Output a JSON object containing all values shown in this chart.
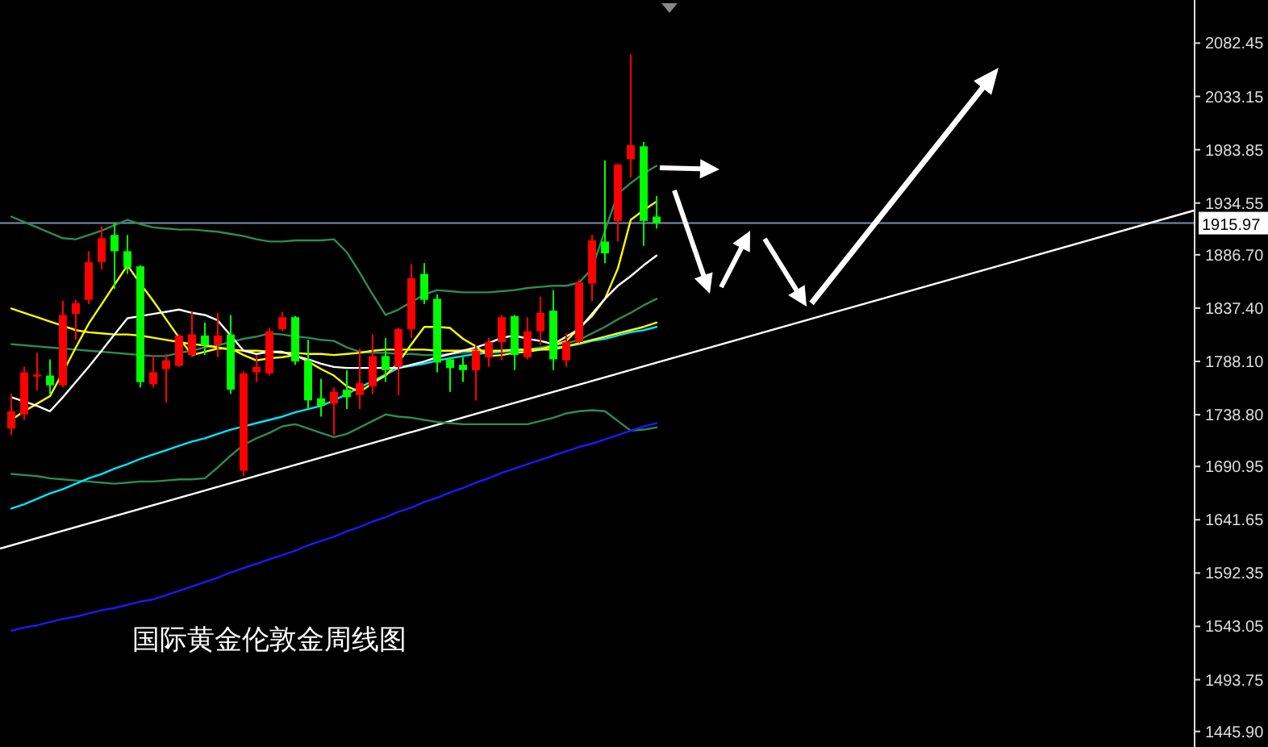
{
  "chart_data": {
    "type": "candlestick",
    "title": "国际黄金伦敦金周线图",
    "categories": [
      null,
      null,
      null,
      null,
      null,
      null,
      null,
      null,
      null,
      null,
      null,
      null,
      null,
      null,
      null,
      null,
      null,
      null,
      null,
      null,
      null,
      null,
      null,
      null,
      null,
      null,
      null,
      null,
      null,
      null,
      null,
      null,
      null,
      null,
      null,
      null,
      null,
      null,
      null,
      null,
      null,
      null,
      null,
      null,
      null,
      null,
      null,
      null,
      null,
      null,
      null
    ],
    "ohlc": [
      [
        1726,
        1758,
        1720,
        1742
      ],
      [
        1739,
        1783,
        1734,
        1778
      ],
      [
        1774,
        1796,
        1761,
        1776
      ],
      [
        1775,
        1790,
        1758,
        1766
      ],
      [
        1766,
        1844,
        1764,
        1831
      ],
      [
        1832,
        1845,
        1808,
        1842
      ],
      [
        1845,
        1890,
        1841,
        1880
      ],
      [
        1880,
        1913,
        1873,
        1902
      ],
      [
        1905,
        1916,
        1855,
        1890
      ],
      [
        1890,
        1905,
        1869,
        1875
      ],
      [
        1876,
        1877,
        1764,
        1769
      ],
      [
        1767,
        1794,
        1764,
        1778
      ],
      [
        1781,
        1795,
        1750,
        1789
      ],
      [
        1784,
        1813,
        1783,
        1812
      ],
      [
        1794,
        1834,
        1792,
        1813
      ],
      [
        1812,
        1824,
        1794,
        1803
      ],
      [
        1804,
        1833,
        1792,
        1812
      ],
      [
        1813,
        1831,
        1758,
        1762
      ],
      [
        1687,
        1779,
        1682,
        1777
      ],
      [
        1778,
        1794,
        1769,
        1783
      ],
      [
        1777,
        1819,
        1775,
        1816
      ],
      [
        1818,
        1834,
        1816,
        1829
      ],
      [
        1829,
        1830,
        1785,
        1788
      ],
      [
        1789,
        1808,
        1744,
        1752
      ],
      [
        1754,
        1772,
        1737,
        1747
      ],
      [
        1749,
        1764,
        1720,
        1760
      ],
      [
        1762,
        1780,
        1744,
        1755
      ],
      [
        1757,
        1800,
        1744,
        1768
      ],
      [
        1765,
        1813,
        1758,
        1793
      ],
      [
        1793,
        1810,
        1769,
        1780
      ],
      [
        1783,
        1819,
        1757,
        1818
      ],
      [
        1818,
        1878,
        1810,
        1865
      ],
      [
        1869,
        1879,
        1841,
        1845
      ],
      [
        1846,
        1850,
        1778,
        1787
      ],
      [
        1790,
        1792,
        1760,
        1782
      ],
      [
        1785,
        1792,
        1769,
        1780
      ],
      [
        1780,
        1803,
        1752,
        1798
      ],
      [
        1792,
        1810,
        1783,
        1806
      ],
      [
        1806,
        1831,
        1789,
        1829
      ],
      [
        1830,
        1831,
        1780,
        1794
      ],
      [
        1792,
        1829,
        1790,
        1816
      ],
      [
        1816,
        1848,
        1803,
        1833
      ],
      [
        1835,
        1854,
        1780,
        1790
      ],
      [
        1789,
        1814,
        1783,
        1806
      ],
      [
        1806,
        1864,
        1805,
        1861
      ],
      [
        1860,
        1905,
        1844,
        1900
      ],
      [
        1899,
        1974,
        1879,
        1888
      ],
      [
        1918,
        1971,
        1899,
        1970
      ],
      [
        1975,
        2072,
        1958,
        1988
      ],
      [
        1987,
        1991,
        1895,
        1918
      ],
      [
        1922,
        1941,
        1911,
        1916
      ]
    ],
    "colors": [
      "#ff0000",
      "#ff0000",
      "#ff0000",
      "#00ff00",
      "#ff0000",
      "#ff0000",
      "#ff0000",
      "#ff0000",
      "#00ff00",
      "#00ff00",
      "#00ff00",
      "#ff0000",
      "#ff0000",
      "#ff0000",
      "#ff0000",
      "#00ff00",
      "#ff0000",
      "#00ff00",
      "#ff0000",
      "#ff0000",
      "#ff0000",
      "#ff0000",
      "#00ff00",
      "#00ff00",
      "#00ff00",
      "#ff0000",
      "#00ff00",
      "#ff0000",
      "#ff0000",
      "#00ff00",
      "#ff0000",
      "#ff0000",
      "#00ff00",
      "#00ff00",
      "#00ff00",
      "#00ff00",
      "#ff0000",
      "#ff0000",
      "#ff0000",
      "#00ff00",
      "#ff0000",
      "#ff0000",
      "#00ff00",
      "#ff0000",
      "#ff0000",
      "#ff0000",
      "#00ff00",
      "#ff0000",
      "#ff0000",
      "#00ff00",
      "#00ff00"
    ],
    "series": [
      {
        "type": "line",
        "color": "#2e8b57",
        "values": [
          1922,
          1917,
          1912,
          1907,
          1902,
          1901,
          1905,
          1909,
          1914,
          1919,
          1915,
          1912,
          1911,
          1910,
          1910,
          1909,
          1908,
          1906,
          1904,
          1901,
          1899,
          1899,
          1900,
          1900,
          1900,
          1901,
          1889,
          1870,
          1850,
          1831,
          1836,
          1843,
          1850,
          1854,
          1853,
          1852,
          1852,
          1852,
          1853,
          1854,
          1856,
          1857,
          1858,
          1858,
          1861,
          1874,
          1909,
          1943,
          1953,
          1962,
          1969
        ]
      },
      {
        "type": "line",
        "color": "#2e8b57",
        "values": [
          1804,
          1803,
          1802,
          1801,
          1800,
          1799,
          1798,
          1797,
          1796,
          1795,
          1794,
          1793,
          1793,
          1796,
          1798,
          1801,
          1803,
          1806,
          1809,
          1811,
          1814,
          1813,
          1811,
          1810,
          1808,
          1807,
          1801,
          1797,
          1796,
          1796,
          1795,
          1795,
          1794,
          1794,
          1795,
          1796,
          1797,
          1797,
          1798,
          1799,
          1799,
          1801,
          1803,
          1805,
          1808,
          1814,
          1820,
          1827,
          1833,
          1840,
          1846
        ]
      },
      {
        "type": "line",
        "color": "#2e8b57",
        "values": [
          1684,
          1683,
          1682,
          1680,
          1679,
          1678,
          1677,
          1676,
          1675,
          1676,
          1677,
          1677,
          1678,
          1679,
          1679,
          1680,
          1690,
          1701,
          1711,
          1717,
          1722,
          1728,
          1730,
          1726,
          1722,
          1718,
          1721,
          1727,
          1733,
          1739,
          1737,
          1736,
          1734,
          1732,
          1731,
          1730,
          1730,
          1730,
          1730,
          1730,
          1730,
          1733,
          1736,
          1740,
          1742,
          1743,
          1742,
          1733,
          1724,
          1725,
          1727
        ]
      },
      {
        "type": "line",
        "color": "#00e5ff",
        "values": [
          1652,
          1656,
          1661,
          1666,
          1670,
          1675,
          1680,
          1684,
          1689,
          1693,
          1698,
          1702,
          1706,
          1710,
          1714,
          1717,
          1721,
          1725,
          1728,
          1731,
          1734,
          1737,
          1741,
          1744,
          1747,
          1752,
          1758,
          1764,
          1770,
          1776,
          1782,
          1784,
          1786,
          1789,
          1791,
          1793,
          1795,
          1796,
          1797,
          1798,
          1799,
          1800,
          1801,
          1802,
          1804,
          1807,
          1809,
          1812,
          1815,
          1817,
          1820
        ]
      },
      {
        "type": "line",
        "color": "#1a1aff",
        "values": [
          1539,
          1542,
          1544,
          1547,
          1550,
          1552,
          1555,
          1558,
          1560,
          1563,
          1566,
          1568,
          1572,
          1576,
          1580,
          1584,
          1588,
          1593,
          1597,
          1601,
          1605,
          1609,
          1613,
          1618,
          1622,
          1626,
          1631,
          1635,
          1640,
          1644,
          1649,
          1653,
          1658,
          1662,
          1667,
          1671,
          1676,
          1680,
          1685,
          1689,
          1693,
          1697,
          1701,
          1705,
          1709,
          1712,
          1716,
          1720,
          1724,
          1728,
          1731
        ]
      },
      {
        "type": "line",
        "color": "#ffff00",
        "values": [
          1837,
          1833,
          1829,
          1825,
          1821,
          1817,
          1815,
          1814,
          1813,
          1813,
          1812,
          1810,
          1808,
          1806,
          1804,
          1803,
          1801,
          1799,
          1798,
          1798,
          1797,
          1796,
          1796,
          1795,
          1795,
          1794,
          1795,
          1796,
          1798,
          1799,
          1799,
          1799,
          1799,
          1798,
          1798,
          1798,
          1798,
          1798,
          1798,
          1799,
          1799,
          1799,
          1799,
          1802,
          1805,
          1808,
          1811,
          1814,
          1817,
          1820,
          1824
        ]
      },
      {
        "type": "line",
        "color": "#ffff00",
        "values": [
          1734,
          1742,
          1749,
          1756,
          1778,
          1801,
          1823,
          1841,
          1859,
          1877,
          1860,
          1844,
          1827,
          1810,
          1794,
          1797,
          1800,
          1800,
          1794,
          1789,
          1791,
          1792,
          1794,
          1788,
          1781,
          1775,
          1765,
          1760,
          1768,
          1775,
          1787,
          1804,
          1820,
          1820,
          1819,
          1809,
          1802,
          1793,
          1794,
          1796,
          1797,
          1799,
          1803,
          1807,
          1819,
          1830,
          1846,
          1874,
          1919,
          1928,
          1936
        ]
      },
      {
        "type": "line",
        "color": "#ffffff",
        "values": [
          1755,
          1751,
          1747,
          1742,
          1755,
          1769,
          1783,
          1798,
          1813,
          1828,
          1830,
          1832,
          1834,
          1836,
          1833,
          1831,
          1826,
          1812,
          1798,
          1795,
          1797,
          1797,
          1793,
          1790,
          1786,
          1783,
          1782,
          1782,
          1782,
          1782,
          1782,
          1785,
          1788,
          1792,
          1795,
          1798,
          1801,
          1805,
          1810,
          1812,
          1809,
          1807,
          1804,
          1811,
          1818,
          1832,
          1846,
          1858,
          1867,
          1877,
          1886
        ]
      }
    ],
    "ylim": [
      1431.5,
      2122.3
    ],
    "yticks": [
      {
        "value": 2082.45,
        "label": "2082.45"
      },
      {
        "value": 2033.15,
        "label": "2033.15"
      },
      {
        "value": 1983.85,
        "label": "1983.85"
      },
      {
        "value": 1934.55,
        "label": "1934.55"
      },
      {
        "value": 1886.7,
        "label": "1886.70"
      },
      {
        "value": 1837.4,
        "label": "1837.40"
      },
      {
        "value": 1788.1,
        "label": "1788.10"
      },
      {
        "value": 1738.8,
        "label": "1738.80"
      },
      {
        "value": 1690.95,
        "label": "1690.95"
      },
      {
        "value": 1641.65,
        "label": "1641.65"
      },
      {
        "value": 1592.35,
        "label": "1592.35"
      },
      {
        "value": 1543.05,
        "label": "1543.05"
      },
      {
        "value": 1493.75,
        "label": "1493.75"
      },
      {
        "value": 1445.9,
        "label": "1445.90"
      }
    ],
    "ref_lines": [
      {
        "axis": "y",
        "value": 1915.97,
        "label": "1915.97",
        "color": "#7b8ea8"
      }
    ],
    "tick_labels": "y"
  }
}
